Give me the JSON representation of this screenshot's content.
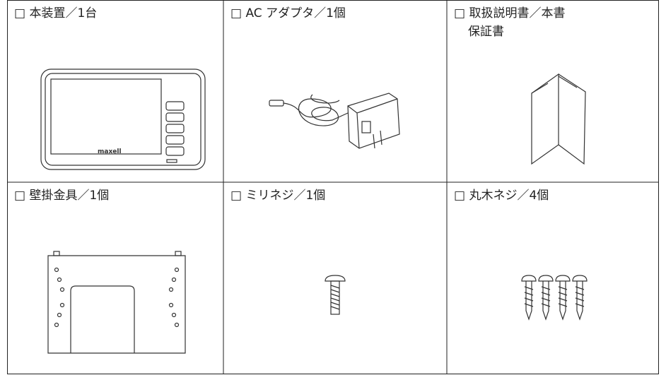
{
  "items": [
    {
      "label": "□ 本装置／1台",
      "brand": "maxell"
    },
    {
      "label": "□ AC アダプタ／1個"
    },
    {
      "label": "□ 取扱説明書／本書",
      "sublabel": "保証書"
    },
    {
      "label": "□ 壁掛金具／1個"
    },
    {
      "label": "□ ミリネジ／1個"
    },
    {
      "label": "□ 丸木ネジ／4個"
    }
  ]
}
